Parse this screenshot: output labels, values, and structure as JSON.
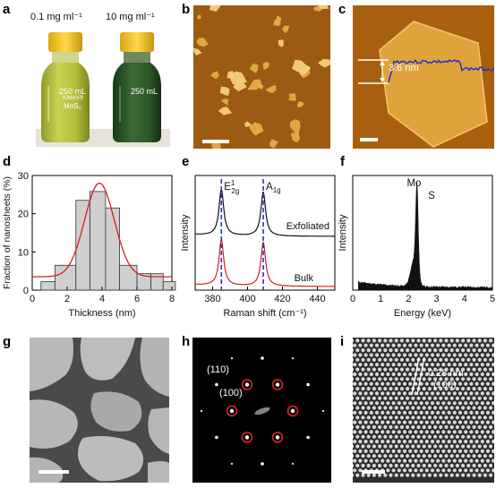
{
  "panels": {
    "a": {
      "label": "a",
      "bottle_left_conc": "0.1 mg ml⁻¹",
      "bottle_right_conc": "10 mg ml⁻¹",
      "bottle_left_volume": "250 mL",
      "bottle_right_volume": "250 mL",
      "bottle_brand": "KIMAX®",
      "bottle_left_content": "MoS₂",
      "colors": {
        "dilute": "#b9c23a",
        "concentrated": "#2f5a2a",
        "cap": "#f3c321"
      }
    },
    "b": {
      "label": "b"
    },
    "c": {
      "label": "c",
      "height_annotation": "3.6 nm"
    },
    "d": {
      "label": "d"
    },
    "e": {
      "label": "e"
    },
    "f": {
      "label": "f"
    },
    "g": {
      "label": "g"
    },
    "h": {
      "label": "h",
      "spot_110": "(110)",
      "spot_100": "(100)"
    },
    "i": {
      "label": "i",
      "spacing": "0.28 nm",
      "plane": "(100)"
    }
  },
  "chart_data": [
    {
      "panel": "d",
      "type": "bar",
      "xlabel": "Thickness (nm)",
      "ylabel": "Fraction of nanosheets (%)",
      "xlim": [
        0,
        8
      ],
      "ylim": [
        0,
        30
      ],
      "xticks": [
        0,
        2,
        4,
        6,
        8
      ],
      "yticks": [
        0,
        10,
        20,
        30
      ],
      "bins": [
        {
          "x0": 0.5,
          "x1": 1.3,
          "value": 2.2
        },
        {
          "x0": 1.3,
          "x1": 2.5,
          "value": 6.5
        },
        {
          "x0": 2.5,
          "x1": 3.3,
          "value": 23.5
        },
        {
          "x0": 3.3,
          "x1": 4.2,
          "value": 25.8
        },
        {
          "x0": 4.2,
          "x1": 5.0,
          "value": 21.5
        },
        {
          "x0": 5.0,
          "x1": 6.0,
          "value": 6.5
        },
        {
          "x0": 6.0,
          "x1": 6.8,
          "value": 4.3
        },
        {
          "x0": 6.8,
          "x1": 7.5,
          "value": 4.3
        },
        {
          "x0": 7.5,
          "x1": 8.2,
          "value": 2.2
        }
      ],
      "fit_curve": {
        "type": "gaussian",
        "center": 3.85,
        "sigma": 0.85,
        "amplitude": 24.5,
        "baseline": 3.5,
        "color": "#d62020"
      }
    },
    {
      "panel": "e",
      "type": "line",
      "xlabel": "Raman shift (cm⁻¹)",
      "ylabel": "Intensity",
      "xlim": [
        370,
        450
      ],
      "xticks": [
        380,
        400,
        420,
        440
      ],
      "peaks": [
        {
          "label": "E",
          "sup": "1",
          "sub": "2g",
          "position": 385
        },
        {
          "label": "A",
          "sub": "1g",
          "position": 409
        }
      ],
      "series": [
        {
          "name": "Exfoliated",
          "color": "#111111"
        },
        {
          "name": "Bulk",
          "color": "#d62020"
        }
      ],
      "marker_color": "#2233cc"
    },
    {
      "panel": "f",
      "type": "area",
      "xlabel": "Energy (keV)",
      "ylabel": "Intensity",
      "xlim": [
        0,
        5
      ],
      "xticks": [
        0,
        1,
        2,
        3,
        4,
        5
      ],
      "peak_labels": [
        {
          "text": "Mo",
          "energy": 2.29
        },
        {
          "text": "S",
          "energy": 2.31
        }
      ]
    }
  ]
}
